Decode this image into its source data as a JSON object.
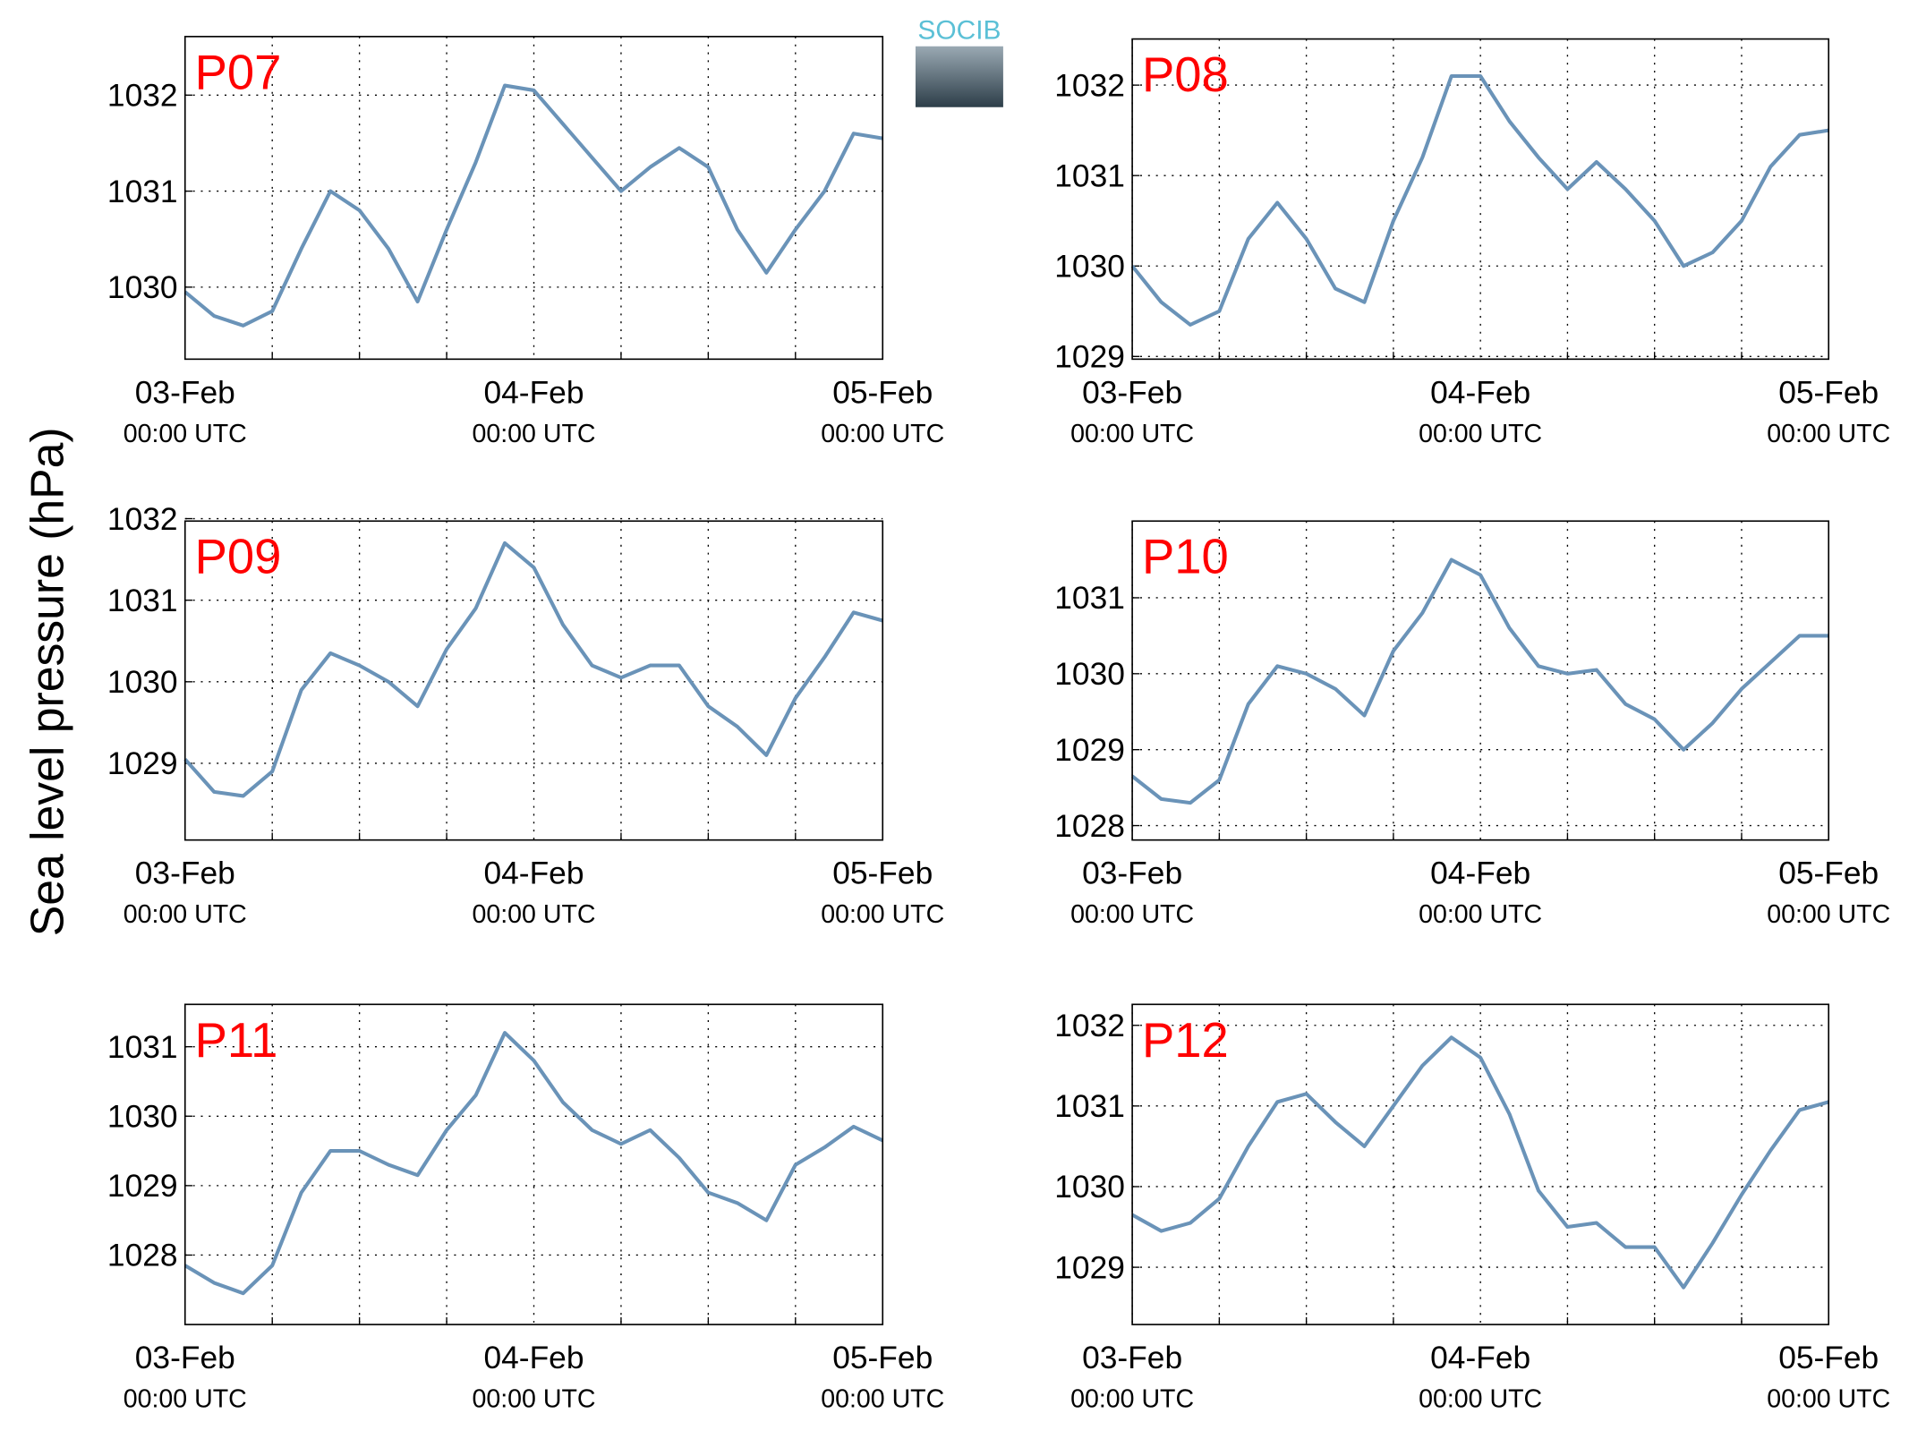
{
  "ylabel": "Sea level pressure (hPa)",
  "logo": "SOCIB",
  "chart_data": [
    {
      "type": "line",
      "title": "P07",
      "color": "#6a93b8",
      "xlim": [
        0,
        48
      ],
      "xticks": [
        {
          "value": 0,
          "label": "03-Feb",
          "sublabel": "00:00 UTC"
        },
        {
          "value": 24,
          "label": "04-Feb",
          "sublabel": "00:00 UTC"
        },
        {
          "value": 48,
          "label": "05-Feb",
          "sublabel": "00:00 UTC"
        }
      ],
      "xminor": [
        6,
        12,
        18,
        30,
        36,
        42
      ],
      "ylim": [
        1029.25,
        1032.61
      ],
      "yticks": [
        1030,
        1031,
        1032
      ],
      "grid": true,
      "x": [
        0,
        2,
        4,
        6,
        8,
        10,
        12,
        14,
        16,
        18,
        20,
        22,
        24,
        26,
        28,
        30,
        32,
        34,
        36,
        38,
        40,
        42,
        44,
        46,
        48
      ],
      "values": [
        1029.95,
        1029.7,
        1029.6,
        1029.75,
        1030.4,
        1031.0,
        1030.8,
        1030.4,
        1029.85,
        1030.6,
        1031.3,
        1032.1,
        1032.05,
        1031.7,
        1031.35,
        1031.0,
        1031.25,
        1031.45,
        1031.25,
        1030.6,
        1030.15,
        1030.6,
        1031.0,
        1031.6,
        1031.55
      ]
    },
    {
      "type": "line",
      "title": "P08",
      "color": "#6a93b8",
      "xlim": [
        0,
        48
      ],
      "xticks": [
        {
          "value": 0,
          "label": "03-Feb",
          "sublabel": "00:00 UTC"
        },
        {
          "value": 24,
          "label": "04-Feb",
          "sublabel": "00:00 UTC"
        },
        {
          "value": 48,
          "label": "05-Feb",
          "sublabel": "00:00 UTC"
        }
      ],
      "xminor": [
        6,
        12,
        18,
        30,
        36,
        42
      ],
      "ylim": [
        1028.97,
        1032.51
      ],
      "yticks": [
        1029,
        1030,
        1031,
        1032
      ],
      "grid": true,
      "x": [
        0,
        2,
        4,
        6,
        8,
        10,
        12,
        14,
        16,
        18,
        20,
        22,
        24,
        26,
        28,
        30,
        32,
        34,
        36,
        38,
        40,
        42,
        44,
        46,
        48
      ],
      "values": [
        1030.0,
        1029.6,
        1029.35,
        1029.5,
        1030.3,
        1030.7,
        1030.3,
        1029.75,
        1029.6,
        1030.5,
        1031.2,
        1032.1,
        1032.1,
        1031.6,
        1031.2,
        1030.85,
        1031.15,
        1030.85,
        1030.5,
        1030.0,
        1030.15,
        1030.5,
        1031.1,
        1031.45,
        1031.5
      ]
    },
    {
      "type": "line",
      "title": "P09",
      "color": "#6a93b8",
      "xlim": [
        0,
        48
      ],
      "xticks": [
        {
          "value": 0,
          "label": "03-Feb",
          "sublabel": "00:00 UTC"
        },
        {
          "value": 24,
          "label": "04-Feb",
          "sublabel": "00:00 UTC"
        },
        {
          "value": 48,
          "label": "05-Feb",
          "sublabel": "00:00 UTC"
        }
      ],
      "xminor": [
        6,
        12,
        18,
        30,
        36,
        42
      ],
      "ylim": [
        1028.06,
        1031.97
      ],
      "yticks": [
        1029,
        1030,
        1031,
        1032
      ],
      "grid": true,
      "x": [
        0,
        2,
        4,
        6,
        8,
        10,
        12,
        14,
        16,
        18,
        20,
        22,
        24,
        26,
        28,
        30,
        32,
        34,
        36,
        38,
        40,
        42,
        44,
        46,
        48
      ],
      "values": [
        1029.05,
        1028.65,
        1028.6,
        1028.9,
        1029.9,
        1030.35,
        1030.2,
        1030.0,
        1029.7,
        1030.4,
        1030.9,
        1031.7,
        1031.4,
        1030.7,
        1030.2,
        1030.05,
        1030.2,
        1030.2,
        1029.7,
        1029.45,
        1029.1,
        1029.8,
        1030.3,
        1030.85,
        1030.75
      ]
    },
    {
      "type": "line",
      "title": "P10",
      "color": "#6a93b8",
      "xlim": [
        0,
        48
      ],
      "xticks": [
        {
          "value": 0,
          "label": "03-Feb",
          "sublabel": "00:00 UTC"
        },
        {
          "value": 24,
          "label": "04-Feb",
          "sublabel": "00:00 UTC"
        },
        {
          "value": 48,
          "label": "05-Feb",
          "sublabel": "00:00 UTC"
        }
      ],
      "xminor": [
        6,
        12,
        18,
        30,
        36,
        42
      ],
      "ylim": [
        1027.81,
        1032.01
      ],
      "yticks": [
        1028,
        1029,
        1030,
        1031
      ],
      "grid": true,
      "x": [
        0,
        2,
        4,
        6,
        8,
        10,
        12,
        14,
        16,
        18,
        20,
        22,
        24,
        26,
        28,
        30,
        32,
        34,
        36,
        38,
        40,
        42,
        44,
        46,
        48
      ],
      "values": [
        1028.65,
        1028.35,
        1028.3,
        1028.6,
        1029.6,
        1030.1,
        1030.0,
        1029.8,
        1029.45,
        1030.3,
        1030.8,
        1031.5,
        1031.3,
        1030.6,
        1030.1,
        1030.0,
        1030.05,
        1029.6,
        1029.4,
        1029.0,
        1029.35,
        1029.8,
        1030.15,
        1030.5,
        1030.5
      ]
    },
    {
      "type": "line",
      "title": "P11",
      "color": "#6a93b8",
      "xlim": [
        0,
        48
      ],
      "xticks": [
        {
          "value": 0,
          "label": "03-Feb",
          "sublabel": "00:00 UTC"
        },
        {
          "value": 24,
          "label": "04-Feb",
          "sublabel": "00:00 UTC"
        },
        {
          "value": 48,
          "label": "05-Feb",
          "sublabel": "00:00 UTC"
        }
      ],
      "xminor": [
        6,
        12,
        18,
        30,
        36,
        42
      ],
      "ylim": [
        1027.0,
        1031.61
      ],
      "yticks": [
        1028,
        1029,
        1030,
        1031
      ],
      "grid": true,
      "x": [
        0,
        2,
        4,
        6,
        8,
        10,
        12,
        14,
        16,
        18,
        20,
        22,
        24,
        26,
        28,
        30,
        32,
        34,
        36,
        38,
        40,
        42,
        44,
        46,
        48
      ],
      "values": [
        1027.85,
        1027.6,
        1027.45,
        1027.85,
        1028.9,
        1029.5,
        1029.5,
        1029.3,
        1029.15,
        1029.8,
        1030.3,
        1031.2,
        1030.8,
        1030.2,
        1029.8,
        1029.6,
        1029.8,
        1029.4,
        1028.9,
        1028.75,
        1028.5,
        1029.3,
        1029.55,
        1029.85,
        1029.65
      ]
    },
    {
      "type": "line",
      "title": "P12",
      "color": "#6a93b8",
      "xlim": [
        0,
        48
      ],
      "xticks": [
        {
          "value": 0,
          "label": "03-Feb",
          "sublabel": "00:00 UTC"
        },
        {
          "value": 24,
          "label": "04-Feb",
          "sublabel": "00:00 UTC"
        },
        {
          "value": 48,
          "label": "05-Feb",
          "sublabel": "00:00 UTC"
        }
      ],
      "xminor": [
        6,
        12,
        18,
        30,
        36,
        42
      ],
      "ylim": [
        1028.29,
        1032.26
      ],
      "yticks": [
        1029,
        1030,
        1031,
        1032
      ],
      "grid": true,
      "x": [
        0,
        2,
        4,
        6,
        8,
        10,
        12,
        14,
        16,
        18,
        20,
        22,
        24,
        26,
        28,
        30,
        32,
        34,
        36,
        38,
        40,
        42,
        44,
        46,
        48
      ],
      "values": [
        1029.65,
        1029.45,
        1029.55,
        1029.85,
        1030.5,
        1031.05,
        1031.15,
        1030.8,
        1030.5,
        1031.0,
        1031.5,
        1031.85,
        1031.6,
        1030.9,
        1029.95,
        1029.5,
        1029.55,
        1029.25,
        1029.25,
        1028.75,
        1029.3,
        1029.9,
        1030.45,
        1030.95,
        1031.05
      ]
    }
  ]
}
